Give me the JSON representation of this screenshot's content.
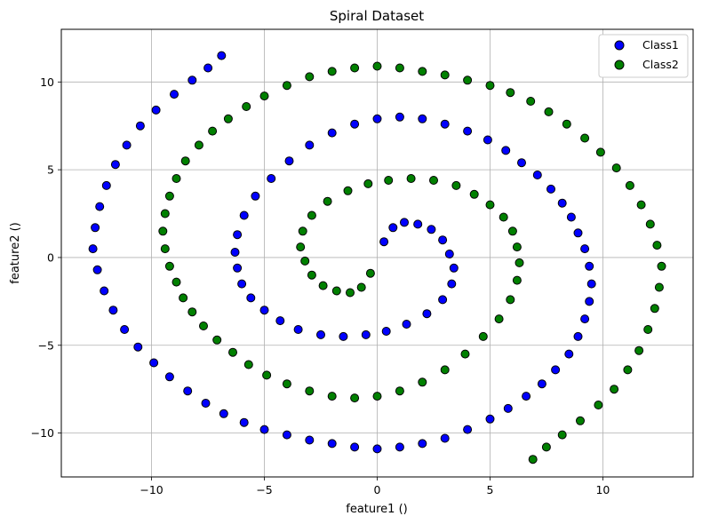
{
  "chart_data": {
    "type": "scatter",
    "title": "Spiral Dataset",
    "xlabel": "feature1 ()",
    "ylabel": "feature2 ()",
    "xlim": [
      -14,
      14
    ],
    "ylim": [
      -12.5,
      13
    ],
    "xticks": [
      -10,
      -5,
      0,
      5,
      10
    ],
    "yticks": [
      -10,
      -5,
      0,
      5,
      10
    ],
    "grid": true,
    "legend_position": "top-right",
    "series": [
      {
        "name": "Class1",
        "color": "#0000ff",
        "x": [
          0.3,
          0.7,
          1.2,
          1.8,
          2.4,
          2.9,
          3.2,
          3.4,
          3.3,
          2.9,
          2.2,
          1.3,
          0.4,
          -0.5,
          -1.5,
          -2.5,
          -3.5,
          -4.3,
          -5.0,
          -5.6,
          -6.0,
          -6.2,
          -6.3,
          -6.2,
          -5.9,
          -5.4,
          -4.7,
          -3.9,
          -3.0,
          -2.0,
          -1.0,
          0.0,
          1.0,
          2.0,
          3.0,
          4.0,
          4.9,
          5.7,
          6.4,
          7.1,
          7.7,
          8.2,
          8.6,
          8.9,
          9.2,
          9.4,
          9.5,
          9.4,
          9.2,
          8.9,
          8.5,
          7.9,
          7.3,
          6.6,
          5.8,
          5.0,
          4.0,
          3.0,
          2.0,
          1.0,
          0.0,
          -1.0,
          -2.0,
          -3.0,
          -4.0,
          -5.0,
          -5.9,
          -6.8,
          -7.6,
          -8.4,
          -9.2,
          -9.9,
          -10.6,
          -11.2,
          -11.7,
          -12.1,
          -12.4,
          -12.6,
          -12.5,
          -12.3,
          -12.0,
          -11.6,
          -11.1,
          -10.5,
          -9.8,
          -9.0,
          -8.2,
          -7.5,
          -6.9
        ],
        "y": [
          0.9,
          1.7,
          2.0,
          1.9,
          1.6,
          1.0,
          0.2,
          -0.6,
          -1.5,
          -2.4,
          -3.2,
          -3.8,
          -4.2,
          -4.4,
          -4.5,
          -4.4,
          -4.1,
          -3.6,
          -3.0,
          -2.3,
          -1.5,
          -0.6,
          0.3,
          1.3,
          2.4,
          3.5,
          4.5,
          5.5,
          6.4,
          7.1,
          7.6,
          7.9,
          8.0,
          7.9,
          7.6,
          7.2,
          6.7,
          6.1,
          5.4,
          4.7,
          3.9,
          3.1,
          2.3,
          1.4,
          0.5,
          -0.5,
          -1.5,
          -2.5,
          -3.5,
          -4.5,
          -5.5,
          -6.4,
          -7.2,
          -7.9,
          -8.6,
          -9.2,
          -9.8,
          -10.3,
          -10.6,
          -10.8,
          -10.9,
          -10.8,
          -10.6,
          -10.4,
          -10.1,
          -9.8,
          -9.4,
          -8.9,
          -8.3,
          -7.6,
          -6.8,
          -6.0,
          -5.1,
          -4.1,
          -3.0,
          -1.9,
          -0.7,
          0.5,
          1.7,
          2.9,
          4.1,
          5.3,
          6.4,
          7.5,
          8.4,
          9.3,
          10.1,
          10.8,
          11.5
        ]
      },
      {
        "name": "Class2",
        "color": "#008000",
        "x": [
          -0.3,
          -0.7,
          -1.2,
          -1.8,
          -2.4,
          -2.9,
          -3.2,
          -3.4,
          -3.3,
          -2.9,
          -2.2,
          -1.3,
          -0.4,
          0.5,
          1.5,
          2.5,
          3.5,
          4.3,
          5.0,
          5.6,
          6.0,
          6.2,
          6.3,
          6.2,
          5.9,
          5.4,
          4.7,
          3.9,
          3.0,
          2.0,
          1.0,
          0.0,
          -1.0,
          -2.0,
          -3.0,
          -4.0,
          -4.9,
          -5.7,
          -6.4,
          -7.1,
          -7.7,
          -8.2,
          -8.6,
          -8.9,
          -9.2,
          -9.4,
          -9.5,
          -9.4,
          -9.2,
          -8.9,
          -8.5,
          -7.9,
          -7.3,
          -6.6,
          -5.8,
          -5.0,
          -4.0,
          -3.0,
          -2.0,
          -1.0,
          0.0,
          1.0,
          2.0,
          3.0,
          4.0,
          5.0,
          5.9,
          6.8,
          7.6,
          8.4,
          9.2,
          9.9,
          10.6,
          11.2,
          11.7,
          12.1,
          12.4,
          12.6,
          12.5,
          12.3,
          12.0,
          11.6,
          11.1,
          10.5,
          9.8,
          9.0,
          8.2,
          7.5,
          6.9
        ],
        "y": [
          -0.9,
          -1.7,
          -2.0,
          -1.9,
          -1.6,
          -1.0,
          -0.2,
          0.6,
          1.5,
          2.4,
          3.2,
          3.8,
          4.2,
          4.4,
          4.5,
          4.4,
          4.1,
          3.6,
          3.0,
          2.3,
          1.5,
          0.6,
          -0.3,
          -1.3,
          -2.4,
          -3.5,
          -4.5,
          -5.5,
          -6.4,
          -7.1,
          -7.6,
          -7.9,
          -8.0,
          -7.9,
          -7.6,
          -7.2,
          -6.7,
          -6.1,
          -5.4,
          -4.7,
          -3.9,
          -3.1,
          -2.3,
          -1.4,
          -0.5,
          0.5,
          1.5,
          2.5,
          3.5,
          4.5,
          5.5,
          6.4,
          7.2,
          7.9,
          8.6,
          9.2,
          9.8,
          10.3,
          10.6,
          10.8,
          10.9,
          10.8,
          10.6,
          10.4,
          10.1,
          9.8,
          9.4,
          8.9,
          8.3,
          7.6,
          6.8,
          6.0,
          5.1,
          4.1,
          3.0,
          1.9,
          0.7,
          -0.5,
          -1.7,
          -2.9,
          -4.1,
          -5.3,
          -6.4,
          -7.5,
          -8.4,
          -9.3,
          -10.1,
          -10.8,
          -11.5
        ]
      }
    ]
  }
}
